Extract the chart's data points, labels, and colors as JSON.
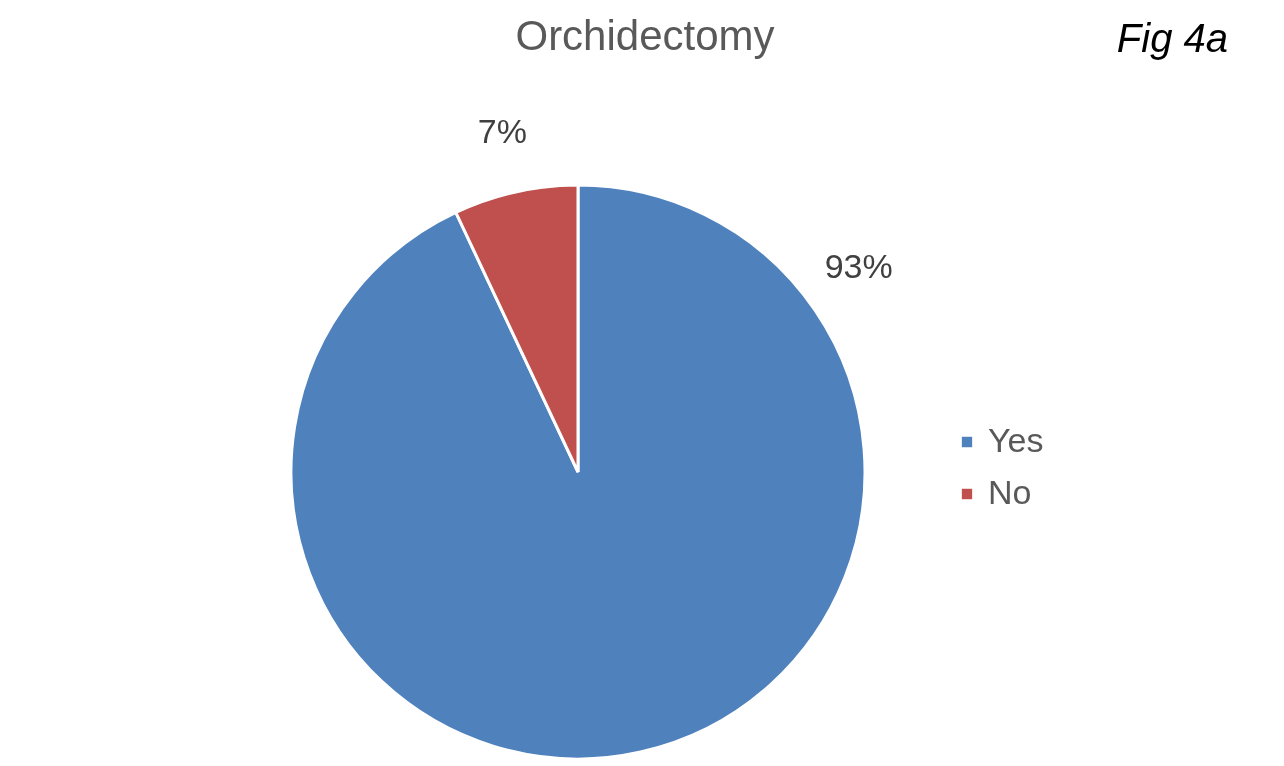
{
  "chart_data": {
    "type": "pie",
    "title": "Orchidectomy",
    "categories": [
      "Yes",
      "No"
    ],
    "values": [
      93,
      7
    ],
    "colors": [
      "#4f81bd",
      "#c0504d"
    ],
    "value_labels": [
      "93%",
      "7%"
    ],
    "legend": "right",
    "annotations": [
      "Fig 4a"
    ]
  }
}
